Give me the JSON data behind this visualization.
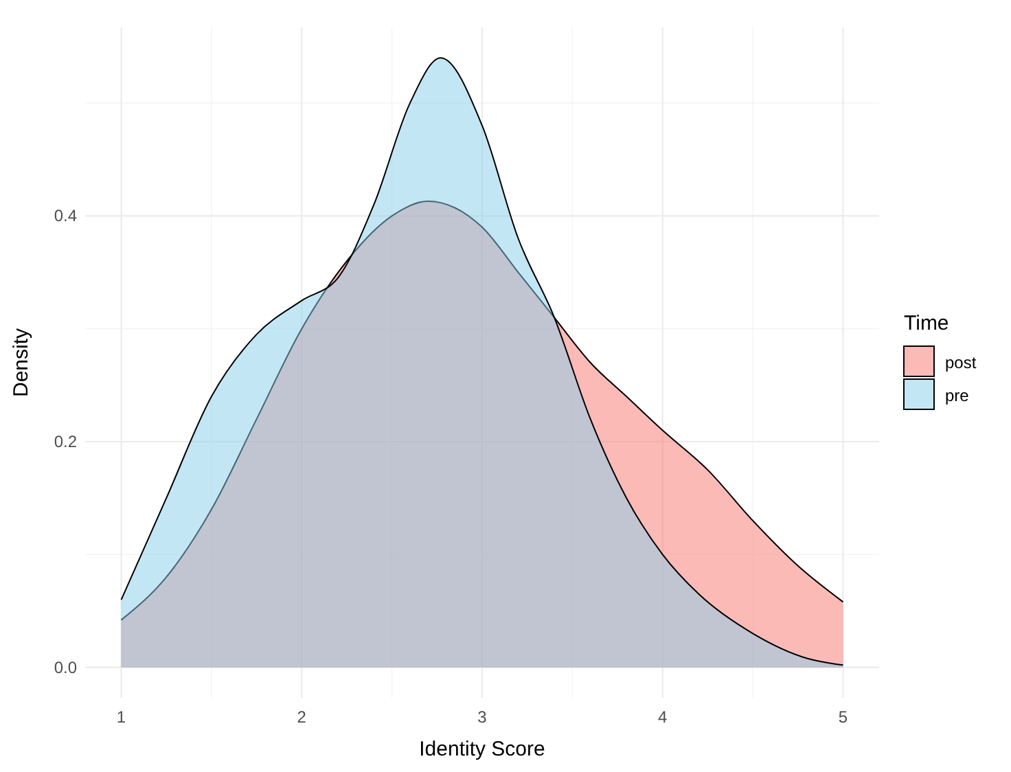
{
  "chart_data": {
    "type": "area",
    "xlabel": "Identity Score",
    "ylabel": "Density",
    "legend_title": "Time",
    "legend": "right",
    "grid": true,
    "xlim": [
      0.8,
      5.2
    ],
    "xticks": [
      1,
      2,
      3,
      4,
      5
    ],
    "ylim": [
      -0.027,
      0.567
    ],
    "yticks": [
      {
        "value": 0,
        "label": "0.0"
      },
      {
        "value": 0.2,
        "label": "0.2"
      },
      {
        "value": 0.4,
        "label": "0.4"
      }
    ],
    "series": [
      {
        "name": "post",
        "color": "#f8766d",
        "x": [
          1,
          1.25,
          1.5,
          1.75,
          2,
          2.25,
          2.5,
          2.7,
          3,
          3.2,
          3.4,
          3.6,
          3.8,
          4,
          4.25,
          4.5,
          4.75,
          5
        ],
        "values": [
          0.042,
          0.08,
          0.14,
          0.22,
          0.3,
          0.36,
          0.4,
          0.413,
          0.39,
          0.35,
          0.31,
          0.27,
          0.24,
          0.21,
          0.175,
          0.13,
          0.09,
          0.058
        ]
      },
      {
        "name": "pre",
        "color": "#87ceeb",
        "x": [
          1,
          1.25,
          1.5,
          1.75,
          2,
          2.2,
          2.4,
          2.6,
          2.77,
          3,
          3.2,
          3.4,
          3.6,
          3.8,
          4,
          4.2,
          4.5,
          4.8,
          5
        ],
        "values": [
          0.06,
          0.15,
          0.24,
          0.295,
          0.325,
          0.345,
          0.41,
          0.5,
          0.54,
          0.48,
          0.38,
          0.31,
          0.22,
          0.15,
          0.1,
          0.065,
          0.03,
          0.008,
          0.002
        ]
      }
    ]
  }
}
